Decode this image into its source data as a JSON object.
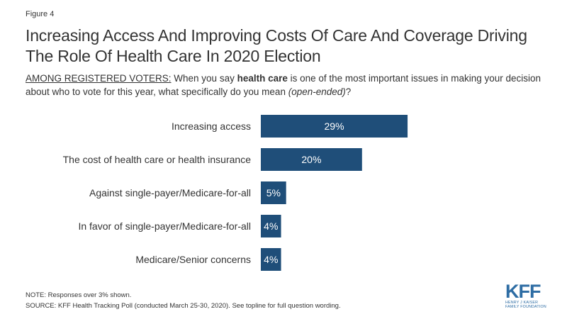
{
  "figure_label": "Figure 4",
  "title": "Increasing Access And Improving Costs Of Care And Coverage Driving The Role Of Health Care In 2020 Election",
  "subtitle": {
    "prefix": "AMONG REGISTERED VOTERS:",
    "part1": " When you say ",
    "bold": "health care",
    "part2": " is one of the most important issues in making your decision about who to vote for this year, what specifically do you mean ",
    "italic": "(open-ended)",
    "end": "?"
  },
  "chart_data": {
    "type": "bar",
    "orientation": "horizontal",
    "categories": [
      "Increasing access",
      "The cost of health care or health insurance",
      "Against single-payer/Medicare-for-all",
      "In favor of single-payer/Medicare-for-all",
      "Medicare/Senior concerns"
    ],
    "values": [
      29,
      20,
      5,
      4,
      4
    ],
    "value_labels": [
      "29%",
      "20%",
      "5%",
      "4%",
      "4%"
    ],
    "unit": "%",
    "bar_color": "#1f4e79",
    "label_color": "#ffffff",
    "xlim": [
      0,
      100
    ],
    "grid": false,
    "legend": "none"
  },
  "footer": {
    "note": "NOTE: Responses over 3% shown.",
    "source": "SOURCE: KFF Health Tracking Poll (conducted March 25-30, 2020). See topline for full question wording."
  },
  "logo": {
    "name": "KFF",
    "line1": "HENRY J KAISER",
    "line2": "FAMILY FOUNDATION",
    "color": "#2e6da4"
  }
}
